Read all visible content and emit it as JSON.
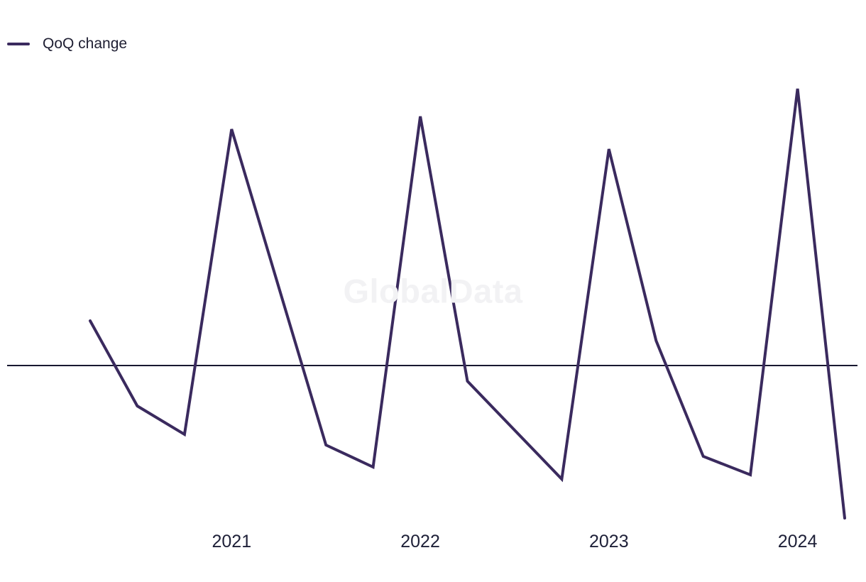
{
  "legend": {
    "items": [
      {
        "label": "QoQ change",
        "color": "#3a2a5e"
      }
    ]
  },
  "watermark": {
    "text": "GlobalData"
  },
  "chart_data": {
    "type": "line",
    "title": "",
    "xlabel": "",
    "ylabel": "",
    "x": [
      "2020-Q2",
      "2020-Q3",
      "2020-Q4",
      "2021-Q1",
      "2021-Q2",
      "2021-Q3",
      "2021-Q4",
      "2022-Q1",
      "2022-Q2",
      "2022-Q3",
      "2022-Q4",
      "2023-Q1",
      "2023-Q2",
      "2023-Q3",
      "2023-Q4",
      "2024-Q1",
      "2024-Q2"
    ],
    "series": [
      {
        "name": "QoQ change",
        "color": "#3a2a5e",
        "values": [
          6.3,
          -5.7,
          -9.7,
          33.3,
          11.0,
          -11.2,
          -14.3,
          35.1,
          -2.2,
          -9.1,
          -16.0,
          30.5,
          3.5,
          -12.8,
          -15.4,
          39.0,
          -21.5
        ]
      }
    ],
    "x_ticks": [
      {
        "label": "2021",
        "at": "2021-Q1"
      },
      {
        "label": "2022",
        "at": "2022-Q1"
      },
      {
        "label": "2023",
        "at": "2023-Q1"
      },
      {
        "label": "2024",
        "at": "2024-Q1"
      }
    ],
    "baseline_value": 0,
    "baseline_color": "#181830",
    "grid": "off",
    "y_axis_shown": false,
    "legend_position": "top-left",
    "value_units": "estimated relative units; chart displays no y-axis scale"
  }
}
